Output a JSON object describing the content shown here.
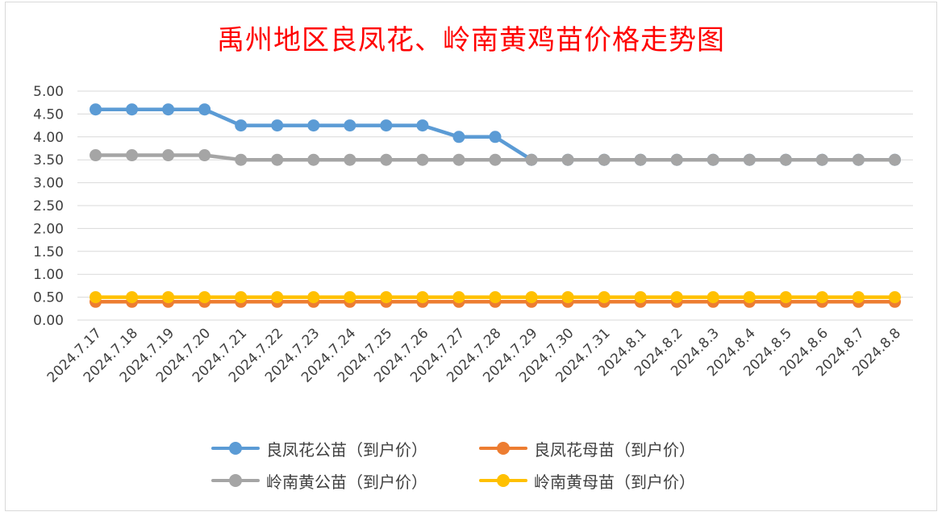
{
  "title": "禹州地区良凤花、岭南黄鸡苗价格走势图",
  "chart_data": {
    "type": "line",
    "title": "禹州地区良凤花、岭南黄鸡苗价格走势图",
    "xlabel": "",
    "ylabel": "",
    "ylim": [
      0,
      5
    ],
    "y_ticks": [
      "0.00",
      "0.50",
      "1.00",
      "1.50",
      "2.00",
      "2.50",
      "3.00",
      "3.50",
      "4.00",
      "4.50",
      "5.00"
    ],
    "grid": true,
    "legend_position": "bottom",
    "categories": [
      "2024.7.17",
      "2024.7.18",
      "2024.7.19",
      "2024.7.20",
      "2024.7.21",
      "2024.7.22",
      "2024.7.23",
      "2024.7.24",
      "2024.7.25",
      "2024.7.26",
      "2024.7.27",
      "2024.7.28",
      "2024.7.29",
      "2024.7.30",
      "2024.7.31",
      "2024.8.1",
      "2024.8.2",
      "2024.8.3",
      "2024.8.4",
      "2024.8.5",
      "2024.8.6",
      "2024.8.7",
      "2024.8.8"
    ],
    "series": [
      {
        "name": "良凤花公苗（到户价）",
        "color": "#5b9bd5",
        "values": [
          4.6,
          4.6,
          4.6,
          4.6,
          4.25,
          4.25,
          4.25,
          4.25,
          4.25,
          4.25,
          4.0,
          4.0,
          3.5,
          3.5,
          3.5,
          3.5,
          3.5,
          3.5,
          3.5,
          3.5,
          3.5,
          3.5,
          3.5
        ]
      },
      {
        "name": "良凤花母苗（到户价）",
        "color": "#ed7d31",
        "values": [
          0.4,
          0.4,
          0.4,
          0.4,
          0.4,
          0.4,
          0.4,
          0.4,
          0.4,
          0.4,
          0.4,
          0.4,
          0.4,
          0.4,
          0.4,
          0.4,
          0.4,
          0.4,
          0.4,
          0.4,
          0.4,
          0.4,
          0.4
        ]
      },
      {
        "name": "岭南黄公苗（到户价）",
        "color": "#a5a5a5",
        "values": [
          3.6,
          3.6,
          3.6,
          3.6,
          3.5,
          3.5,
          3.5,
          3.5,
          3.5,
          3.5,
          3.5,
          3.5,
          3.5,
          3.5,
          3.5,
          3.5,
          3.5,
          3.5,
          3.5,
          3.5,
          3.5,
          3.5,
          3.5
        ]
      },
      {
        "name": "岭南黄母苗（到户价）",
        "color": "#ffc000",
        "values": [
          0.5,
          0.5,
          0.5,
          0.5,
          0.5,
          0.5,
          0.5,
          0.5,
          0.5,
          0.5,
          0.5,
          0.5,
          0.5,
          0.5,
          0.5,
          0.5,
          0.5,
          0.5,
          0.5,
          0.5,
          0.5,
          0.5,
          0.5
        ]
      }
    ],
    "legend": [
      {
        "label": "良凤花公苗（到户价）",
        "color": "#5b9bd5"
      },
      {
        "label": "良凤花母苗（到户价）",
        "color": "#ed7d31"
      },
      {
        "label": "岭南黄公苗（到户价）",
        "color": "#a5a5a5"
      },
      {
        "label": "岭南黄母苗（到户价）",
        "color": "#ffc000"
      }
    ]
  }
}
